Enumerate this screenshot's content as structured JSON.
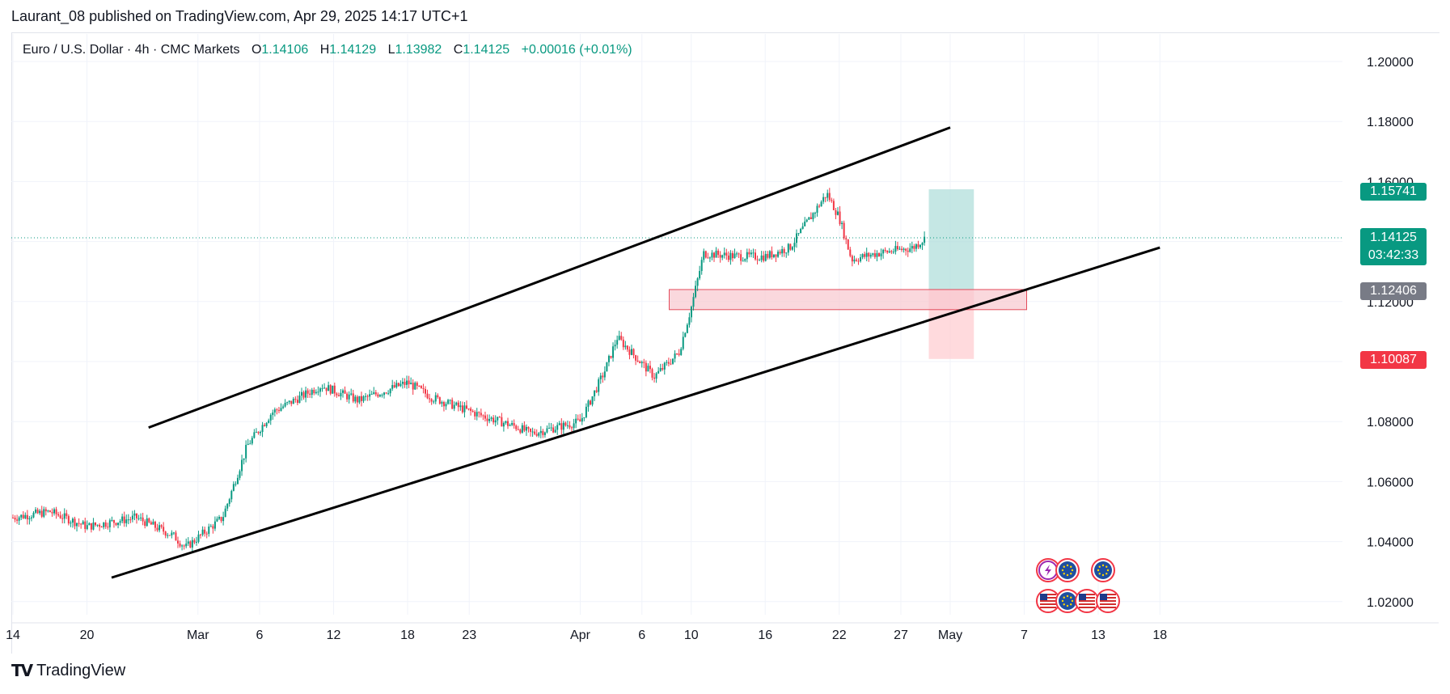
{
  "publisher_line": "Laurant_08 published on TradingView.com, Apr 29, 2025 14:17 UTC+1",
  "legend": {
    "symbol": "Euro / U.S. Dollar · 4h · CMC Markets",
    "o_label": "O",
    "o_value": "1.14106",
    "h_label": "H",
    "h_value": "1.14129",
    "l_label": "L",
    "l_value": "1.13982",
    "c_label": "C",
    "c_value": "1.14125",
    "change": "+0.00016 (+0.01%)"
  },
  "price_tags": {
    "target": "1.15741",
    "current": "1.14125",
    "countdown": "03:42:33",
    "entry": "1.12406",
    "stop": "1.10087"
  },
  "colors": {
    "up": "#089981",
    "down": "#f23645",
    "target_zone": "#b2dfdb",
    "stop_zone": "#ffcdd2",
    "entry_tag": "#787b86",
    "channel_line": "#000000",
    "grid": "#f0f3fa"
  },
  "footer": {
    "brand": "TradingView",
    "logo_icon": "tradingview-logo-icon"
  },
  "event_icons": [
    "lightning-icon",
    "eu-flag-icon",
    "eu-flag-icon",
    "us-flag-icon",
    "eu-flag-icon",
    "us-flag-icon",
    "us-flag-icon"
  ],
  "chart_data": {
    "type": "candlestick",
    "title": "Euro / U.S. Dollar · 4h · CMC Markets",
    "ylim": [
      1.01,
      1.21
    ],
    "y_ticks": [
      "1.20000",
      "1.18000",
      "1.16000",
      "1.14000",
      "1.12000",
      "1.10000",
      "1.08000",
      "1.06000",
      "1.04000",
      "1.02000"
    ],
    "x_ticks": [
      "14",
      "20",
      "Mar",
      "6",
      "12",
      "18",
      "23",
      "Apr",
      "6",
      "10",
      "16",
      "22",
      "27",
      "May",
      "7",
      "13",
      "18"
    ],
    "grid": true,
    "path_points": [
      [
        "Feb 14",
        1.048
      ],
      [
        "Feb 17",
        1.05
      ],
      [
        "Feb 20",
        1.045
      ],
      [
        "Feb 24",
        1.048
      ],
      [
        "Feb 27",
        1.042
      ],
      [
        "Feb 28",
        1.038
      ],
      [
        "Mar 3",
        1.048
      ],
      [
        "Mar 5",
        1.072
      ],
      [
        "Mar 7",
        1.083
      ],
      [
        "Mar 11",
        1.092
      ],
      [
        "Mar 14",
        1.087
      ],
      [
        "Mar 18",
        1.093
      ],
      [
        "Mar 20",
        1.088
      ],
      [
        "Mar 24",
        1.082
      ],
      [
        "Mar 27",
        1.078
      ],
      [
        "Mar 28",
        1.076
      ],
      [
        "Apr 1",
        1.08
      ],
      [
        "Apr 3",
        1.097
      ],
      [
        "Apr 4",
        1.108
      ],
      [
        "Apr 7",
        1.095
      ],
      [
        "Apr 9",
        1.103
      ],
      [
        "Apr 10",
        1.118
      ],
      [
        "Apr 11",
        1.136
      ],
      [
        "Apr 14",
        1.135
      ],
      [
        "Apr 16",
        1.135
      ],
      [
        "Apr 18",
        1.138
      ],
      [
        "Apr 21",
        1.156
      ],
      [
        "Apr 22",
        1.148
      ],
      [
        "Apr 23",
        1.134
      ],
      [
        "Apr 25",
        1.136
      ],
      [
        "Apr 28",
        1.138
      ],
      [
        "Apr 29",
        1.14125
      ]
    ],
    "channel_upper": [
      [
        "Feb 25",
        1.078
      ],
      [
        "May 1",
        1.178
      ]
    ],
    "channel_lower": [
      [
        "Feb 22",
        1.028
      ],
      [
        "May 18",
        1.138
      ]
    ],
    "support_zone": {
      "from": "Apr 9",
      "to": "May 3",
      "y1": 1.1173,
      "y2": 1.124
    },
    "position": {
      "from": "Apr 29",
      "to": "May 2",
      "entry": 1.12406,
      "target": 1.15741,
      "stop": 1.10087
    },
    "last_price": 1.14125
  }
}
